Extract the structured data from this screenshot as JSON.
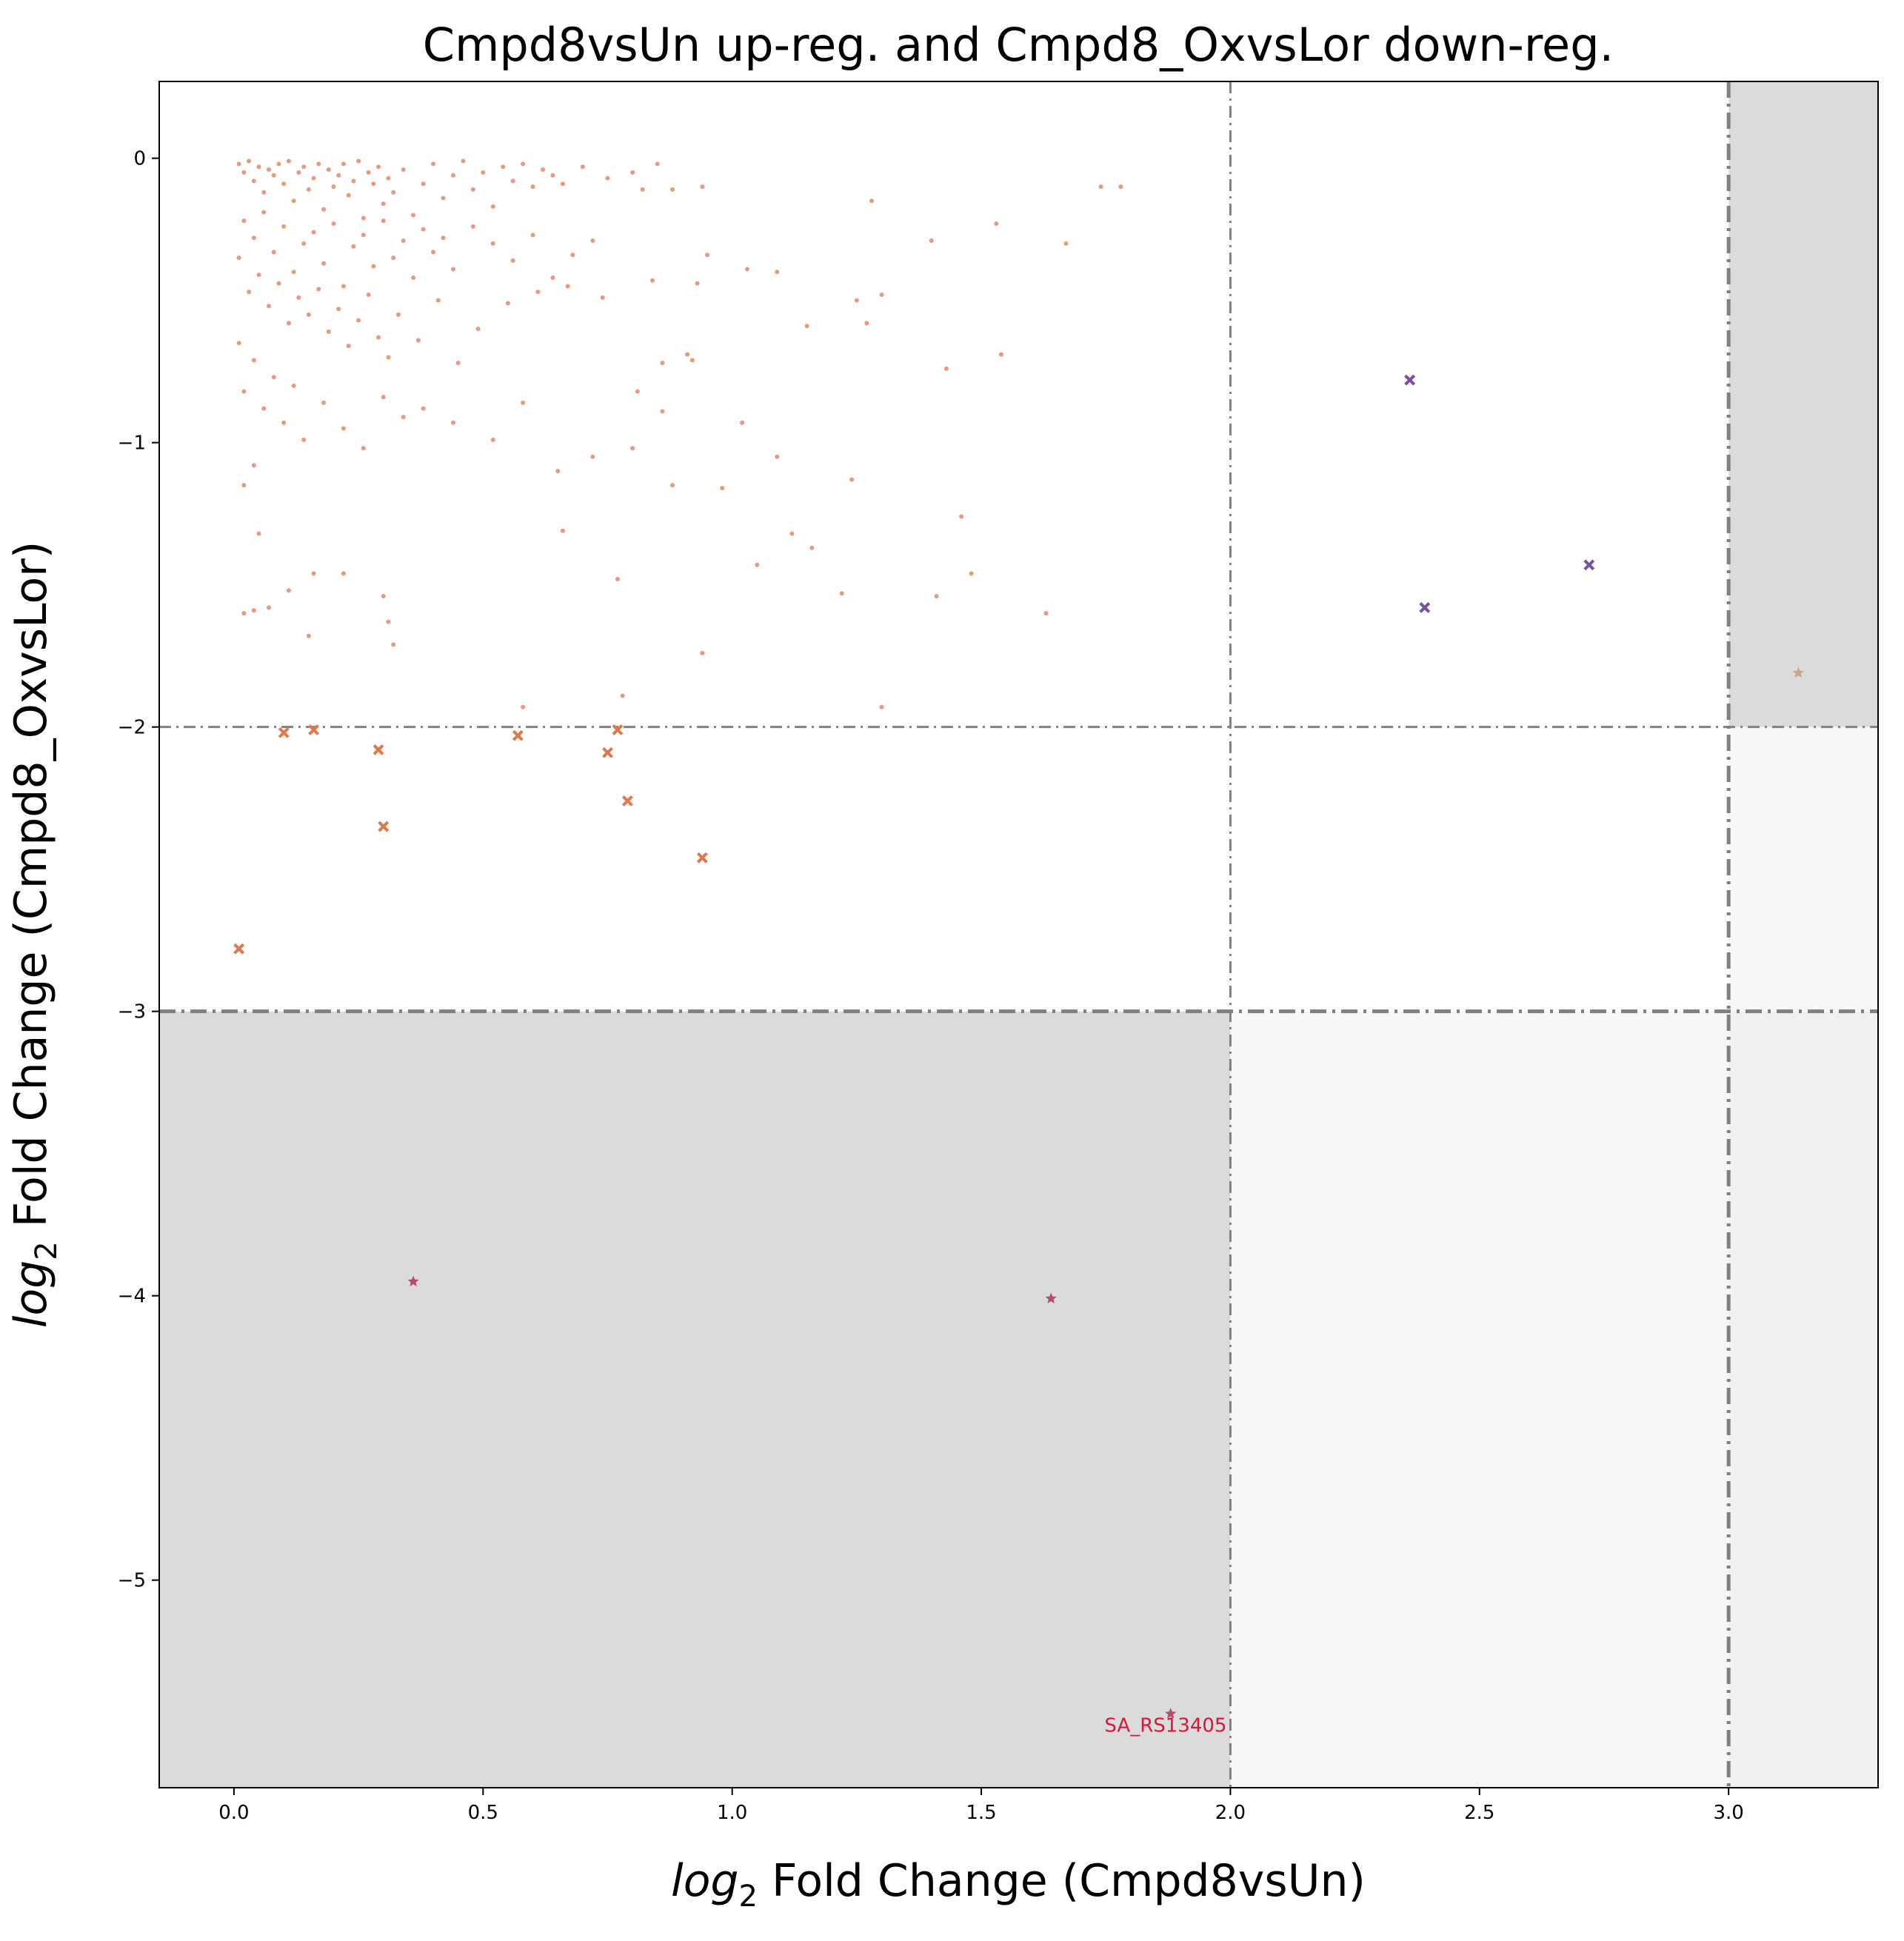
{
  "chart_data": {
    "type": "scatter",
    "title": "Cmpd8vsUn up-reg. and Cmpd8_OxvsLor down-reg.",
    "xlabel_italic": "log",
    "xlabel_sub": "2",
    "xlabel_rest": " Fold Change (Cmpd8vsUn)",
    "ylabel_italic": "log",
    "ylabel_sub": "2",
    "ylabel_rest": " Fold Change (Cmpd8_OxvsLor)",
    "xlim": [
      -0.15,
      3.3
    ],
    "ylim": [
      -5.73,
      0.27
    ],
    "xticks": [
      0.0,
      0.5,
      1.0,
      1.5,
      2.0,
      2.5,
      3.0
    ],
    "xtick_labels": [
      "0.0",
      "0.5",
      "1.0",
      "1.5",
      "2.0",
      "2.5",
      "3.0"
    ],
    "yticks": [
      0,
      -1,
      -2,
      -3,
      -4,
      -5
    ],
    "ytick_labels": [
      "0",
      "−1",
      "−2",
      "−3",
      "−4",
      "−5"
    ],
    "grid": false,
    "shaded_regions": [
      {
        "x": [
          -0.15,
          2.0
        ],
        "y": [
          -5.73,
          -3.0
        ],
        "color": "#dbdbdb"
      },
      {
        "x": [
          2.0,
          3.0
        ],
        "y": [
          -5.73,
          -3.0
        ],
        "color": "#f7f7f7"
      },
      {
        "x": [
          3.0,
          3.3
        ],
        "y": [
          -5.73,
          -3.0
        ],
        "color": "#f0f0f0"
      },
      {
        "x": [
          3.0,
          3.3
        ],
        "y": [
          -3.0,
          -2.0
        ],
        "color": "#f7f7f7"
      },
      {
        "x": [
          3.0,
          3.3
        ],
        "y": [
          -2.0,
          0.27
        ],
        "color": "#dbdbdb"
      }
    ],
    "threshold_lines": [
      {
        "orientation": "vertical",
        "value": 2.0,
        "style": "thin"
      },
      {
        "orientation": "vertical",
        "value": 3.0,
        "style": "thick"
      },
      {
        "orientation": "horizontal",
        "value": -2.0,
        "style": "thin"
      },
      {
        "orientation": "horizontal",
        "value": -3.0,
        "style": "thick"
      }
    ],
    "series": [
      {
        "marker": "dot",
        "color": "#e0784c",
        "points": [
          [
            0.01,
            -0.02
          ],
          [
            0.02,
            -0.05
          ],
          [
            0.03,
            -0.01
          ],
          [
            0.04,
            -0.08
          ],
          [
            0.05,
            -0.03
          ],
          [
            0.06,
            -0.12
          ],
          [
            0.07,
            -0.04
          ],
          [
            0.08,
            -0.06
          ],
          [
            0.09,
            -0.02
          ],
          [
            0.1,
            -0.09
          ],
          [
            0.11,
            -0.01
          ],
          [
            0.12,
            -0.15
          ],
          [
            0.13,
            -0.05
          ],
          [
            0.14,
            -0.03
          ],
          [
            0.15,
            -0.11
          ],
          [
            0.16,
            -0.07
          ],
          [
            0.17,
            -0.02
          ],
          [
            0.18,
            -0.18
          ],
          [
            0.19,
            -0.04
          ],
          [
            0.2,
            -0.1
          ],
          [
            0.21,
            -0.06
          ],
          [
            0.22,
            -0.02
          ],
          [
            0.23,
            -0.13
          ],
          [
            0.24,
            -0.08
          ],
          [
            0.25,
            -0.01
          ],
          [
            0.26,
            -0.21
          ],
          [
            0.27,
            -0.05
          ],
          [
            0.28,
            -0.09
          ],
          [
            0.29,
            -0.03
          ],
          [
            0.3,
            -0.16
          ],
          [
            0.31,
            -0.07
          ],
          [
            0.32,
            -0.12
          ],
          [
            0.34,
            -0.04
          ],
          [
            0.36,
            -0.2
          ],
          [
            0.38,
            -0.09
          ],
          [
            0.4,
            -0.02
          ],
          [
            0.42,
            -0.14
          ],
          [
            0.44,
            -0.06
          ],
          [
            0.46,
            -0.01
          ],
          [
            0.48,
            -0.11
          ],
          [
            0.5,
            -0.05
          ],
          [
            0.52,
            -0.17
          ],
          [
            0.54,
            -0.03
          ],
          [
            0.56,
            -0.08
          ],
          [
            0.58,
            -0.02
          ],
          [
            0.6,
            -0.1
          ],
          [
            0.62,
            -0.04
          ],
          [
            0.64,
            -0.06
          ],
          [
            0.66,
            -0.09
          ],
          [
            0.7,
            -0.03
          ],
          [
            0.75,
            -0.07
          ],
          [
            0.8,
            -0.05
          ],
          [
            0.85,
            -0.02
          ],
          [
            0.88,
            -0.11
          ],
          [
            0.02,
            -0.22
          ],
          [
            0.04,
            -0.28
          ],
          [
            0.06,
            -0.19
          ],
          [
            0.08,
            -0.33
          ],
          [
            0.1,
            -0.24
          ],
          [
            0.12,
            -0.4
          ],
          [
            0.14,
            -0.3
          ],
          [
            0.16,
            -0.26
          ],
          [
            0.18,
            -0.37
          ],
          [
            0.2,
            -0.23
          ],
          [
            0.22,
            -0.45
          ],
          [
            0.24,
            -0.31
          ],
          [
            0.26,
            -0.27
          ],
          [
            0.28,
            -0.38
          ],
          [
            0.3,
            -0.22
          ],
          [
            0.32,
            -0.35
          ],
          [
            0.34,
            -0.29
          ],
          [
            0.36,
            -0.42
          ],
          [
            0.38,
            -0.25
          ],
          [
            0.4,
            -0.33
          ],
          [
            0.42,
            -0.28
          ],
          [
            0.44,
            -0.39
          ],
          [
            0.48,
            -0.24
          ],
          [
            0.52,
            -0.3
          ],
          [
            0.56,
            -0.36
          ],
          [
            0.6,
            -0.27
          ],
          [
            0.64,
            -0.42
          ],
          [
            0.68,
            -0.34
          ],
          [
            0.72,
            -0.29
          ],
          [
            0.01,
            -0.35
          ],
          [
            0.03,
            -0.47
          ],
          [
            0.05,
            -0.41
          ],
          [
            0.07,
            -0.52
          ],
          [
            0.09,
            -0.44
          ],
          [
            0.11,
            -0.58
          ],
          [
            0.13,
            -0.49
          ],
          [
            0.15,
            -0.55
          ],
          [
            0.17,
            -0.46
          ],
          [
            0.19,
            -0.61
          ],
          [
            0.21,
            -0.53
          ],
          [
            0.23,
            -0.66
          ],
          [
            0.25,
            -0.57
          ],
          [
            0.27,
            -0.48
          ],
          [
            0.29,
            -0.63
          ],
          [
            0.31,
            -0.7
          ],
          [
            0.33,
            -0.55
          ],
          [
            0.37,
            -0.64
          ],
          [
            0.41,
            -0.5
          ],
          [
            0.45,
            -0.72
          ],
          [
            0.49,
            -0.6
          ],
          [
            0.55,
            -0.51
          ],
          [
            0.61,
            -0.47
          ],
          [
            0.67,
            -0.45
          ],
          [
            0.74,
            -0.49
          ],
          [
            0.01,
            -0.65
          ],
          [
            0.02,
            -0.82
          ],
          [
            0.04,
            -0.71
          ],
          [
            0.06,
            -0.88
          ],
          [
            0.08,
            -0.77
          ],
          [
            0.1,
            -0.93
          ],
          [
            0.12,
            -0.8
          ],
          [
            0.14,
            -0.99
          ],
          [
            0.18,
            -0.86
          ],
          [
            0.22,
            -0.95
          ],
          [
            0.26,
            -1.02
          ],
          [
            0.3,
            -0.84
          ],
          [
            0.34,
            -0.91
          ],
          [
            0.38,
            -0.88
          ],
          [
            0.44,
            -0.93
          ],
          [
            0.52,
            -0.99
          ],
          [
            0.58,
            -0.86
          ],
          [
            0.65,
            -1.1
          ],
          [
            0.72,
            -1.05
          ],
          [
            0.8,
            -1.02
          ],
          [
            0.88,
            -1.15
          ],
          [
            0.02,
            -1.15
          ],
          [
            0.04,
            -1.08
          ],
          [
            0.05,
            -1.32
          ],
          [
            0.11,
            -1.52
          ],
          [
            0.16,
            -1.46
          ],
          [
            0.22,
            -1.46
          ],
          [
            0.3,
            -1.54
          ],
          [
            0.31,
            -1.63
          ],
          [
            0.32,
            -1.71
          ],
          [
            0.15,
            -1.68
          ],
          [
            0.02,
            -1.6
          ],
          [
            0.04,
            -1.59
          ],
          [
            0.07,
            -1.58
          ],
          [
            0.58,
            -1.93
          ],
          [
            0.78,
            -1.89
          ],
          [
            0.94,
            -1.74
          ],
          [
            1.3,
            -1.93
          ],
          [
            0.77,
            -1.48
          ],
          [
            0.66,
            -1.31
          ],
          [
            0.98,
            -1.16
          ],
          [
            1.02,
            -0.93
          ],
          [
            1.09,
            -1.05
          ],
          [
            1.05,
            -1.43
          ],
          [
            1.12,
            -1.32
          ],
          [
            1.16,
            -1.37
          ],
          [
            1.22,
            -1.53
          ],
          [
            1.24,
            -1.13
          ],
          [
            1.41,
            -1.54
          ],
          [
            1.46,
            -1.26
          ],
          [
            1.48,
            -1.46
          ],
          [
            1.63,
            -1.6
          ],
          [
            1.03,
            -0.39
          ],
          [
            1.09,
            -0.4
          ],
          [
            1.15,
            -0.59
          ],
          [
            1.25,
            -0.5
          ],
          [
            1.28,
            -0.15
          ],
          [
            1.3,
            -0.48
          ],
          [
            1.27,
            -0.58
          ],
          [
            1.4,
            -0.29
          ],
          [
            1.43,
            -0.74
          ],
          [
            1.53,
            -0.23
          ],
          [
            1.54,
            -0.69
          ],
          [
            1.67,
            -0.3
          ],
          [
            1.74,
            -0.1
          ],
          [
            1.78,
            -0.1
          ],
          [
            0.95,
            -0.34
          ],
          [
            0.93,
            -0.44
          ],
          [
            0.86,
            -0.72
          ],
          [
            0.91,
            -0.69
          ],
          [
            0.81,
            -0.82
          ],
          [
            0.84,
            -0.43
          ],
          [
            0.86,
            -0.89
          ],
          [
            0.92,
            -0.71
          ],
          [
            0.94,
            -0.1
          ],
          [
            0.82,
            -0.11
          ]
        ]
      },
      {
        "marker": "x",
        "color": "#e0784c",
        "points": [
          [
            0.01,
            -2.78
          ],
          [
            0.1,
            -2.02
          ],
          [
            0.16,
            -2.01
          ],
          [
            0.29,
            -2.08
          ],
          [
            0.3,
            -2.35
          ],
          [
            0.57,
            -2.03
          ],
          [
            0.75,
            -2.09
          ],
          [
            0.77,
            -2.01
          ],
          [
            0.79,
            -2.26
          ],
          [
            0.94,
            -2.46
          ]
        ]
      },
      {
        "marker": "x",
        "color": "#7b4f9d",
        "points": [
          [
            2.36,
            -0.78
          ],
          [
            2.39,
            -1.58
          ],
          [
            2.72,
            -1.43
          ]
        ]
      },
      {
        "marker": "star",
        "color": "#c9a58b",
        "points": [
          [
            3.14,
            -1.81
          ]
        ]
      },
      {
        "marker": "star",
        "color": "#b0506a",
        "points": [
          [
            0.36,
            -3.95
          ],
          [
            1.64,
            -4.01
          ],
          [
            1.88,
            -5.47
          ]
        ]
      }
    ],
    "annotations": [
      {
        "text": "SA_RS13405",
        "x": 1.87,
        "y": -5.51,
        "color": "#d6173a"
      }
    ]
  }
}
